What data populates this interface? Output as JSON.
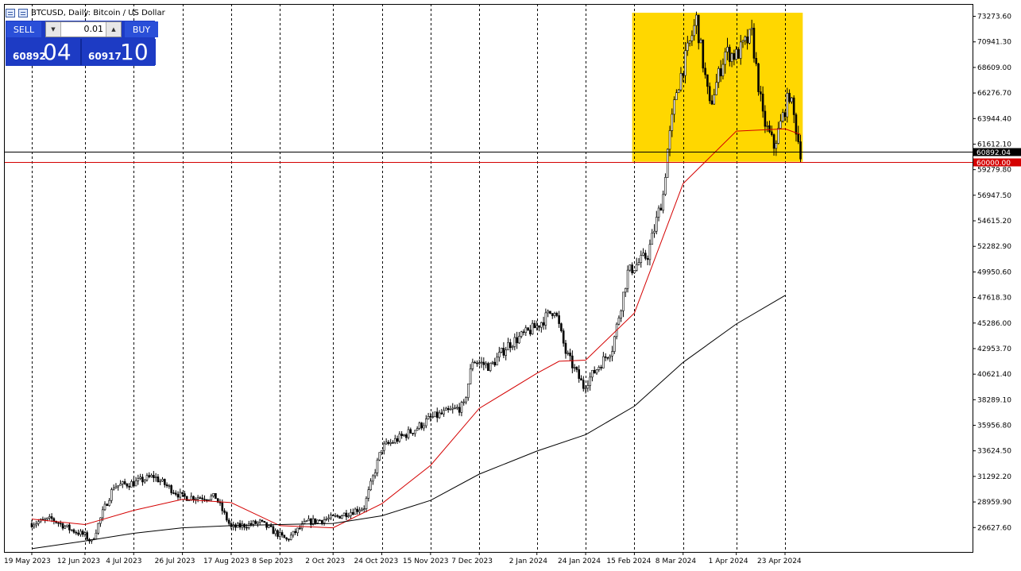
{
  "header": {
    "title": "BTCUSD, Daily:  Bitcoin / US Dollar"
  },
  "trade_panel": {
    "sell_label": "SELL",
    "buy_label": "BUY",
    "lot_value": "0.01",
    "sell_price_small": "60892",
    "sell_price_big": "04",
    "buy_price_small": "60917",
    "buy_price_big": "10",
    "down_icon": "triangle-down-icon",
    "up_icon": "triangle-up-icon"
  },
  "chart_data": {
    "type": "candlestick",
    "symbol": "BTCUSD",
    "timeframe": "Daily",
    "ylim": [
      24400,
      74400
    ],
    "yticks": [
      "73273.60",
      "70941.30",
      "68609.00",
      "66276.70",
      "63944.40",
      "61612.10",
      "59279.80",
      "56947.50",
      "54615.20",
      "52282.90",
      "49950.60",
      "47618.30",
      "45286.00",
      "42953.70",
      "40621.40",
      "38289.10",
      "35956.80",
      "33624.50",
      "31292.20",
      "28959.90",
      "26627.60"
    ],
    "xticks": [
      "19 May 2023",
      "12 Jun 2023",
      "4 Jul 2023",
      "26 Jul 2023",
      "17 Aug 2023",
      "8 Sep 2023",
      "2 Oct 2023",
      "24 Oct 2023",
      "15 Nov 2023",
      "7 Dec 2023",
      "2 Jan 2024",
      "24 Jan 2024",
      "15 Feb 2024",
      "8 Mar 2024",
      "1 Apr 2024",
      "23 Apr 2024"
    ],
    "bid_label": "60892.04",
    "level_label": "60000.00",
    "bid_price": 60892.04,
    "level_price": 60000.0,
    "zone": {
      "price_low": 60000,
      "price_high": 73600,
      "date_start": "2024-02-14",
      "date_end": "2024-05-01",
      "color": "#ffd700"
    },
    "grid": "vertical-dashed",
    "colors": {
      "ma_fast": "#d40000",
      "ma_slow": "#000000",
      "bid_line": "#000000",
      "level_line": "#d40000",
      "candle": "#000000"
    },
    "ma_fast_path": [
      [
        "2023-05-19",
        27400
      ],
      [
        "2023-06-12",
        26900
      ],
      [
        "2023-07-04",
        28200
      ],
      [
        "2023-07-26",
        29200
      ],
      [
        "2023-08-17",
        28900
      ],
      [
        "2023-09-08",
        26800
      ],
      [
        "2023-10-02",
        26600
      ],
      [
        "2023-10-24",
        28800
      ],
      [
        "2023-11-15",
        32300
      ],
      [
        "2023-12-07",
        37500
      ],
      [
        "2024-01-02",
        40700
      ],
      [
        "2024-01-12",
        41800
      ],
      [
        "2024-01-24",
        41900
      ],
      [
        "2024-02-15",
        46200
      ],
      [
        "2024-03-08",
        58000
      ],
      [
        "2024-04-01",
        62800
      ],
      [
        "2024-04-23",
        63000
      ],
      [
        "2024-04-30",
        62500
      ]
    ],
    "ma_slow_path": [
      [
        "2023-05-19",
        24700
      ],
      [
        "2023-06-12",
        25400
      ],
      [
        "2023-07-04",
        26100
      ],
      [
        "2023-07-26",
        26600
      ],
      [
        "2023-08-17",
        26800
      ],
      [
        "2023-09-08",
        26900
      ],
      [
        "2023-10-02",
        27000
      ],
      [
        "2023-10-24",
        27700
      ],
      [
        "2023-11-15",
        29100
      ],
      [
        "2023-12-07",
        31500
      ],
      [
        "2024-01-02",
        33600
      ],
      [
        "2024-01-24",
        35100
      ],
      [
        "2024-02-15",
        37700
      ],
      [
        "2024-03-08",
        41700
      ],
      [
        "2024-04-01",
        45200
      ],
      [
        "2024-04-23",
        47800
      ]
    ],
    "price_path": [
      [
        "2023-05-19",
        27000
      ],
      [
        "2023-05-28",
        27400
      ],
      [
        "2023-06-05",
        26500
      ],
      [
        "2023-06-12",
        25900
      ],
      [
        "2023-06-15",
        25300
      ],
      [
        "2023-06-20",
        28000
      ],
      [
        "2023-06-25",
        30400
      ],
      [
        "2023-07-04",
        30700
      ],
      [
        "2023-07-13",
        31300
      ],
      [
        "2023-07-26",
        29400
      ],
      [
        "2023-08-10",
        29400
      ],
      [
        "2023-08-17",
        26600
      ],
      [
        "2023-08-30",
        27100
      ],
      [
        "2023-09-11",
        25500
      ],
      [
        "2023-09-20",
        27100
      ],
      [
        "2023-10-02",
        27500
      ],
      [
        "2023-10-16",
        28500
      ],
      [
        "2023-10-24",
        33900
      ],
      [
        "2023-11-08",
        35600
      ],
      [
        "2023-11-15",
        36600
      ],
      [
        "2023-11-30",
        37700
      ],
      [
        "2023-12-04",
        41900
      ],
      [
        "2023-12-12",
        41300
      ],
      [
        "2023-12-20",
        43300
      ],
      [
        "2024-01-02",
        45000
      ],
      [
        "2024-01-10",
        46600
      ],
      [
        "2024-01-15",
        42600
      ],
      [
        "2024-01-23",
        39500
      ],
      [
        "2024-02-05",
        43000
      ],
      [
        "2024-02-12",
        49900
      ],
      [
        "2024-02-21",
        51500
      ],
      [
        "2024-02-28",
        57000
      ],
      [
        "2024-03-01",
        61100
      ],
      [
        "2024-03-05",
        66500
      ],
      [
        "2024-03-14",
        73000
      ],
      [
        "2024-03-20",
        65000
      ],
      [
        "2024-03-27",
        70000
      ],
      [
        "2024-04-01",
        69700
      ],
      [
        "2024-04-08",
        71600
      ],
      [
        "2024-04-13",
        64000
      ],
      [
        "2024-04-18",
        61400
      ],
      [
        "2024-04-25",
        66200
      ],
      [
        "2024-04-30",
        60900
      ]
    ]
  }
}
